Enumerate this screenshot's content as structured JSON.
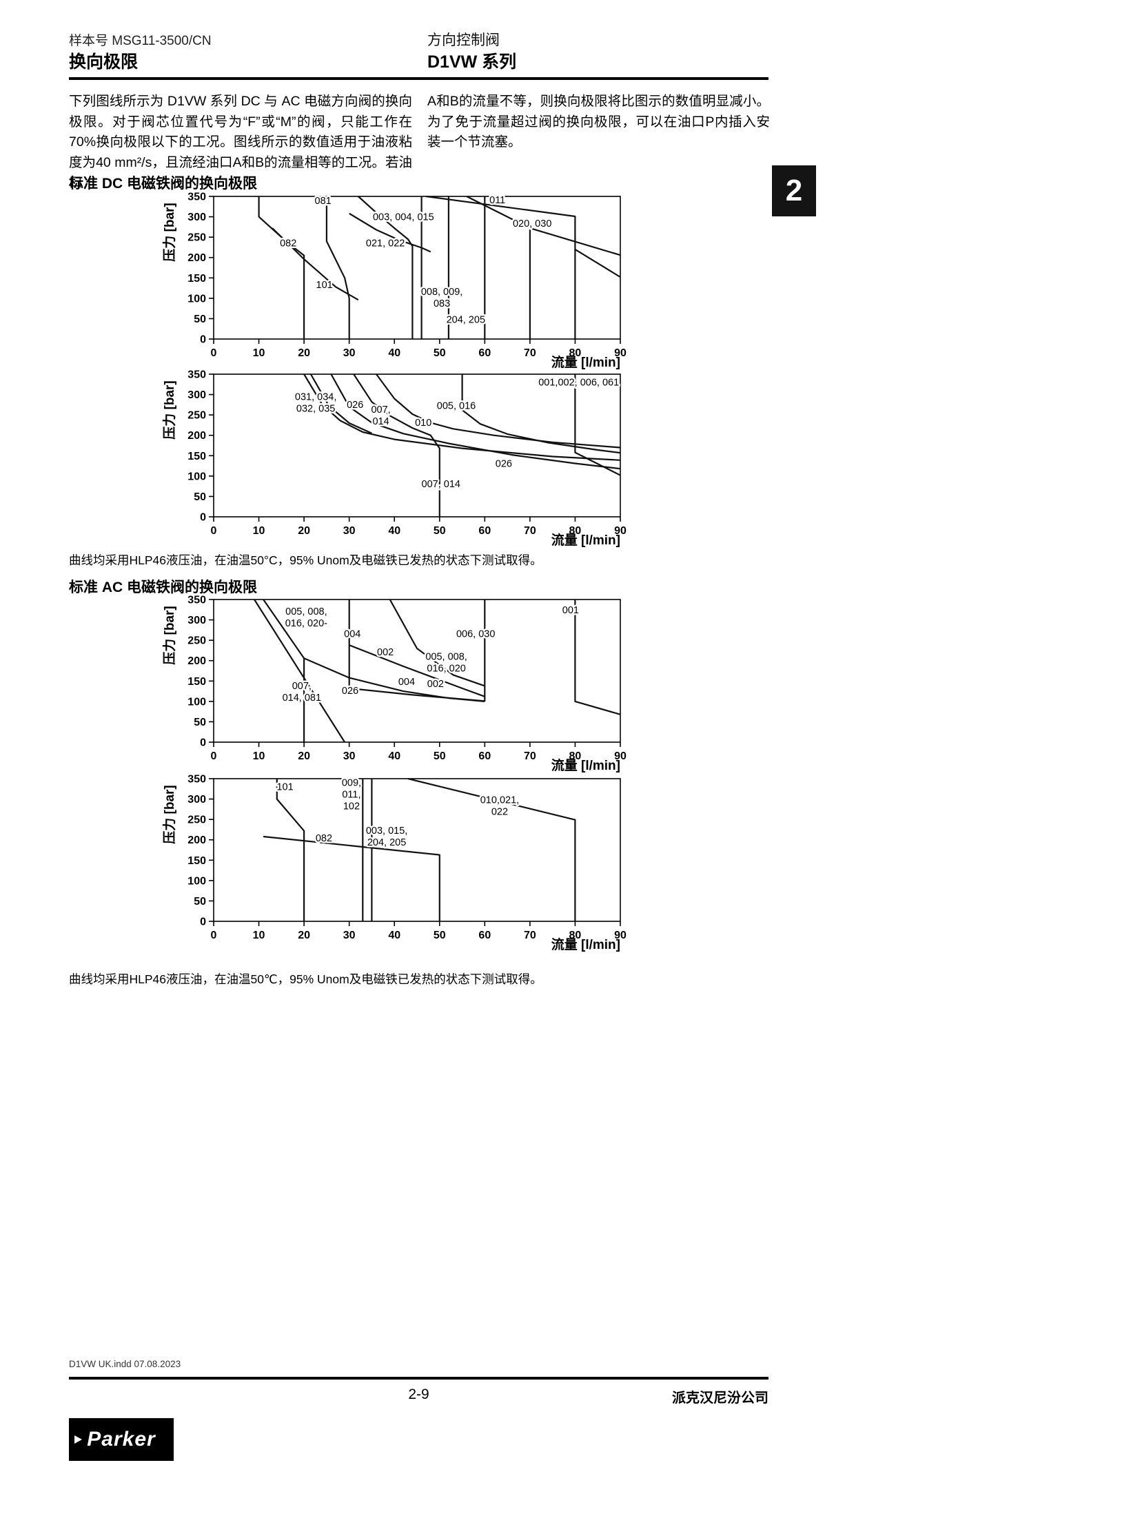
{
  "page": {
    "header": {
      "catalog_label": "样本号 MSG11-3500/CN",
      "title_left": "换向极限",
      "category_right": "方向控制阀",
      "series_right": "D1VW 系列"
    },
    "tab_number": "2",
    "intro_left": "下列图线所示为 D1VW 系列 DC 与 AC 电磁方向阀的换向极限。对于阀芯位置代号为“F”或“M”的阀，只能工作在70%换向极限以下的工况。图线所示的数值适用于油液粘度为40 mm²/s，且流经油口A和B的流量相等的工况。若油口",
    "intro_right": "A和B的流量不等，则换向极限将比图示的数值明显减小。为了免于流量超过阀的换向极限，可以在油口P内插入安装一个节流塞。",
    "section_dc_title": "标准 DC 电磁铁阀的换向极限",
    "section_ac_title": "标准 AC 电磁铁阀的换向极限",
    "note_dc": "曲线均采用HLP46液压油，在油温50°C，95% Unom及电磁铁已发热的状态下测试取得。",
    "note_ac": "曲线均采用HLP46液压油，在油温50℃，95% Unom及电磁铁已发热的状态下测试取得。",
    "footer": {
      "file_note": "D1VW UK.indd 07.08.2023",
      "page_number": "2-9",
      "company": "派克汉尼汾公司",
      "logo_text": "Parker"
    }
  },
  "chart_data": [
    {
      "id": "dc-chart-1",
      "type": "line",
      "xlabel": "流量 [l/min]",
      "ylabel": "压力 [bar]",
      "xlim": [
        0,
        90
      ],
      "ylim": [
        0,
        350
      ],
      "xticks": [
        0,
        10,
        20,
        30,
        40,
        50,
        60,
        70,
        80,
        90
      ],
      "yticks": [
        0,
        50,
        100,
        150,
        200,
        250,
        300,
        350
      ],
      "series": [
        {
          "name": "082",
          "lines": [
            [
              [
                10,
                350
              ],
              [
                10,
                300
              ],
              [
                16,
                240
              ],
              [
                20,
                205
              ],
              [
                20,
                0
              ]
            ]
          ]
        },
        {
          "name": "081",
          "lines": [
            [
              [
                25,
                350
              ],
              [
                25,
                240
              ],
              [
                29,
                150
              ],
              [
                30,
                100
              ],
              [
                30,
                0
              ]
            ]
          ]
        },
        {
          "name": "101",
          "lines": [
            [
              [
                13,
                272
              ],
              [
                20,
                196
              ],
              [
                27,
                128
              ],
              [
                32,
                96
              ]
            ]
          ]
        },
        {
          "name": "003, 004, 015",
          "lines": [
            [
              [
                32,
                350
              ],
              [
                36,
                310
              ],
              [
                40,
                272
              ],
              [
                43,
                245
              ],
              [
                44,
                228
              ],
              [
                44,
                0
              ]
            ]
          ]
        },
        {
          "name": "021, 022",
          "lines": [
            [
              [
                30,
                308
              ],
              [
                36,
                268
              ],
              [
                41,
                243
              ],
              [
                46,
                224
              ],
              [
                48,
                214
              ]
            ]
          ]
        },
        {
          "name": "008, 009, 083",
          "lines": [
            [
              [
                46,
                350
              ],
              [
                46,
                0
              ]
            ]
          ]
        },
        {
          "name": "204, 205",
          "lines": [
            [
              [
                52,
                350
              ],
              [
                52,
                0
              ]
            ],
            [
              [
                60,
                350
              ],
              [
                60,
                0
              ]
            ]
          ]
        },
        {
          "name": "011",
          "lines": [
            [
              [
                47,
                350
              ],
              [
                80,
                301
              ],
              [
                80,
                0
              ]
            ],
            [
              [
                80,
                220
              ],
              [
                90,
                152
              ]
            ]
          ]
        },
        {
          "name": "020, 030",
          "lines": [
            [
              [
                56,
                350
              ],
              [
                70,
                272
              ],
              [
                90,
                206
              ]
            ],
            [
              [
                70,
                272
              ],
              [
                70,
                0
              ]
            ]
          ]
        }
      ],
      "labels": [
        {
          "text": [
            "081"
          ],
          "x": 24.2,
          "y": 331
        },
        {
          "text": [
            "003, 004, 015"
          ],
          "x": 42,
          "y": 292
        },
        {
          "text": [
            "011"
          ],
          "x": 62.8,
          "y": 333
        },
        {
          "text": [
            "020, 030"
          ],
          "x": 70.5,
          "y": 276
        },
        {
          "text": [
            "082"
          ],
          "x": 16.5,
          "y": 227
        },
        {
          "text": [
            "021, 022"
          ],
          "x": 38,
          "y": 227
        },
        {
          "text": [
            "101"
          ],
          "x": 24.5,
          "y": 125
        },
        {
          "text": [
            "008, 009,",
            "083"
          ],
          "x": 50.5,
          "y": 108
        },
        {
          "text": [
            "204, 205"
          ],
          "x": 55.8,
          "y": 40
        }
      ]
    },
    {
      "id": "dc-chart-2",
      "type": "line",
      "xlabel": "流量 [l/min]",
      "ylabel": "压力 [bar]",
      "xlim": [
        0,
        90
      ],
      "ylim": [
        0,
        350
      ],
      "xticks": [
        0,
        10,
        20,
        30,
        40,
        50,
        60,
        70,
        80,
        90
      ],
      "yticks": [
        0,
        50,
        100,
        150,
        200,
        250,
        300,
        350
      ],
      "series": [
        {
          "name": "031, 034, 032, 035",
          "lines": [
            [
              [
                20,
                350
              ],
              [
                24,
                276
              ],
              [
                28,
                236
              ],
              [
                33,
                208
              ],
              [
                40,
                190
              ],
              [
                55,
                168
              ],
              [
                75,
                148
              ],
              [
                90,
                139
              ]
            ],
            [
              [
                21.5,
                350
              ],
              [
                25.5,
                272
              ],
              [
                30,
                230
              ],
              [
                35,
                205
              ]
            ]
          ]
        },
        {
          "name": "026",
          "lines": [
            [
              [
                26,
                350
              ],
              [
                30,
                270
              ],
              [
                35,
                231
              ],
              [
                42,
                204
              ],
              [
                52,
                180
              ],
              [
                66,
                152
              ],
              [
                80,
                131
              ],
              [
                90,
                118
              ]
            ]
          ]
        },
        {
          "name": "007, 014",
          "lines": [
            [
              [
                31,
                350
              ],
              [
                35,
                282
              ],
              [
                39,
                248
              ],
              [
                44,
                218
              ],
              [
                48,
                200
              ],
              [
                50,
                168
              ],
              [
                50,
                0
              ]
            ]
          ]
        },
        {
          "name": "010",
          "lines": [
            [
              [
                36,
                350
              ],
              [
                40,
                290
              ],
              [
                44,
                252
              ],
              [
                48,
                231
              ],
              [
                53,
                216
              ],
              [
                62,
                200
              ],
              [
                75,
                183
              ],
              [
                90,
                170
              ]
            ]
          ]
        },
        {
          "name": "005, 016",
          "lines": [
            [
              [
                55,
                350
              ],
              [
                55,
                262
              ],
              [
                59,
                228
              ],
              [
                65,
                203
              ],
              [
                74,
                182
              ],
              [
                85,
                164
              ],
              [
                90,
                157
              ]
            ]
          ]
        },
        {
          "name": "001, 002, 006, 061",
          "lines": [
            [
              [
                80,
                350
              ],
              [
                80,
                158
              ],
              [
                90,
                102
              ]
            ]
          ]
        }
      ],
      "labels": [
        {
          "text": [
            "001,002, 006, 061"
          ],
          "x": 80.8,
          "y": 322
        },
        {
          "text": [
            "031, 034,",
            "032, 035"
          ],
          "x": 22.6,
          "y": 287
        },
        {
          "text": [
            "026"
          ],
          "x": 31.3,
          "y": 267
        },
        {
          "text": [
            "007,",
            "014"
          ],
          "x": 37,
          "y": 255
        },
        {
          "text": [
            "010"
          ],
          "x": 46.4,
          "y": 223
        },
        {
          "text": [
            "005, 016"
          ],
          "x": 53.7,
          "y": 265
        },
        {
          "text": [
            "026"
          ],
          "x": 64.2,
          "y": 123
        },
        {
          "text": [
            "007, 014"
          ],
          "x": 50.3,
          "y": 73
        }
      ]
    },
    {
      "id": "ac-chart-1",
      "type": "line",
      "xlabel": "流量 [l/min]",
      "ylabel": "压力 [bar]",
      "xlim": [
        0,
        90
      ],
      "ylim": [
        0,
        350
      ],
      "xticks": [
        0,
        10,
        20,
        30,
        40,
        50,
        60,
        70,
        80,
        90
      ],
      "yticks": [
        0,
        50,
        100,
        150,
        200,
        250,
        300,
        350
      ],
      "series": [
        {
          "name": "005, 008, 016, 020",
          "lines": [
            [
              [
                11,
                350
              ],
              [
                20,
                206
              ],
              [
                20,
                0
              ]
            ],
            [
              [
                39,
                350
              ],
              [
                45,
                230
              ],
              [
                53,
                165
              ],
              [
                60,
                138
              ]
            ]
          ]
        },
        {
          "name": "007, 014, 081",
          "lines": [
            [
              [
                9,
                350
              ],
              [
                29,
                0
              ]
            ]
          ]
        },
        {
          "name": "004",
          "lines": [
            [
              [
                30,
                350
              ],
              [
                30,
                132
              ],
              [
                44,
                116
              ],
              [
                60,
                101
              ]
            ]
          ]
        },
        {
          "name": "002",
          "lines": [
            [
              [
                30,
                238
              ],
              [
                42,
                186
              ],
              [
                55,
                132
              ],
              [
                60,
                112
              ]
            ]
          ]
        },
        {
          "name": "026",
          "lines": [
            [
              [
                20,
                206
              ],
              [
                30,
                158
              ],
              [
                42,
                125
              ],
              [
                52,
                108
              ],
              [
                60,
                100
              ]
            ]
          ]
        },
        {
          "name": "006, 030",
          "lines": [
            [
              [
                60,
                350
              ],
              [
                60,
                100
              ]
            ]
          ]
        },
        {
          "name": "001",
          "lines": [
            [
              [
                80,
                350
              ],
              [
                80,
                100
              ],
              [
                90,
                68
              ]
            ]
          ]
        }
      ],
      "labels": [
        {
          "text": [
            "005, 008,",
            "016, 020-"
          ],
          "x": 20.5,
          "y": 313
        },
        {
          "text": [
            "004"
          ],
          "x": 30.7,
          "y": 258
        },
        {
          "text": [
            "002"
          ],
          "x": 38,
          "y": 213
        },
        {
          "text": [
            "006, 030"
          ],
          "x": 58,
          "y": 258
        },
        {
          "text": [
            "005, 008,",
            "016, 020"
          ],
          "x": 51.5,
          "y": 202
        },
        {
          "text": [
            "001"
          ],
          "x": 79,
          "y": 316
        },
        {
          "text": [
            "007,",
            "014, 081"
          ],
          "x": 19.5,
          "y": 130
        },
        {
          "text": [
            "026"
          ],
          "x": 30.2,
          "y": 118
        },
        {
          "text": [
            "004"
          ],
          "x": 42.7,
          "y": 140
        },
        {
          "text": [
            "002"
          ],
          "x": 49.1,
          "y": 135
        }
      ]
    },
    {
      "id": "ac-chart-2",
      "type": "line",
      "xlabel": "流量 [l/min]",
      "ylabel": "压力 [bar]",
      "xlim": [
        0,
        90
      ],
      "ylim": [
        0,
        350
      ],
      "xticks": [
        0,
        10,
        20,
        30,
        40,
        50,
        60,
        70,
        80,
        90
      ],
      "yticks": [
        0,
        50,
        100,
        150,
        200,
        250,
        300,
        350
      ],
      "series": [
        {
          "name": "101",
          "lines": [
            [
              [
                14,
                350
              ],
              [
                14,
                300
              ],
              [
                20,
                222
              ],
              [
                20,
                0
              ]
            ]
          ]
        },
        {
          "name": "082",
          "lines": [
            [
              [
                11,
                208
              ],
              [
                50,
                163
              ],
              [
                50,
                0
              ]
            ]
          ]
        },
        {
          "name": "009, 011, 102",
          "lines": [
            [
              [
                33,
                350
              ],
              [
                33,
                0
              ]
            ]
          ]
        },
        {
          "name": "003, 015, 204, 205",
          "lines": [
            [
              [
                35,
                350
              ],
              [
                35,
                0
              ]
            ]
          ]
        },
        {
          "name": "010, 021, 022",
          "lines": [
            [
              [
                43,
                350
              ],
              [
                80,
                249
              ],
              [
                80,
                0
              ]
            ]
          ]
        }
      ],
      "labels": [
        {
          "text": [
            "101"
          ],
          "x": 15.8,
          "y": 322
        },
        {
          "text": [
            "009,",
            "011,",
            "102"
          ],
          "x": 30.5,
          "y": 332
        },
        {
          "text": [
            "003, 015,",
            "204, 205"
          ],
          "x": 38.3,
          "y": 215
        },
        {
          "text": [
            "010,021,",
            "022"
          ],
          "x": 63.3,
          "y": 290
        },
        {
          "text": [
            "082"
          ],
          "x": 24.4,
          "y": 196
        }
      ]
    }
  ]
}
